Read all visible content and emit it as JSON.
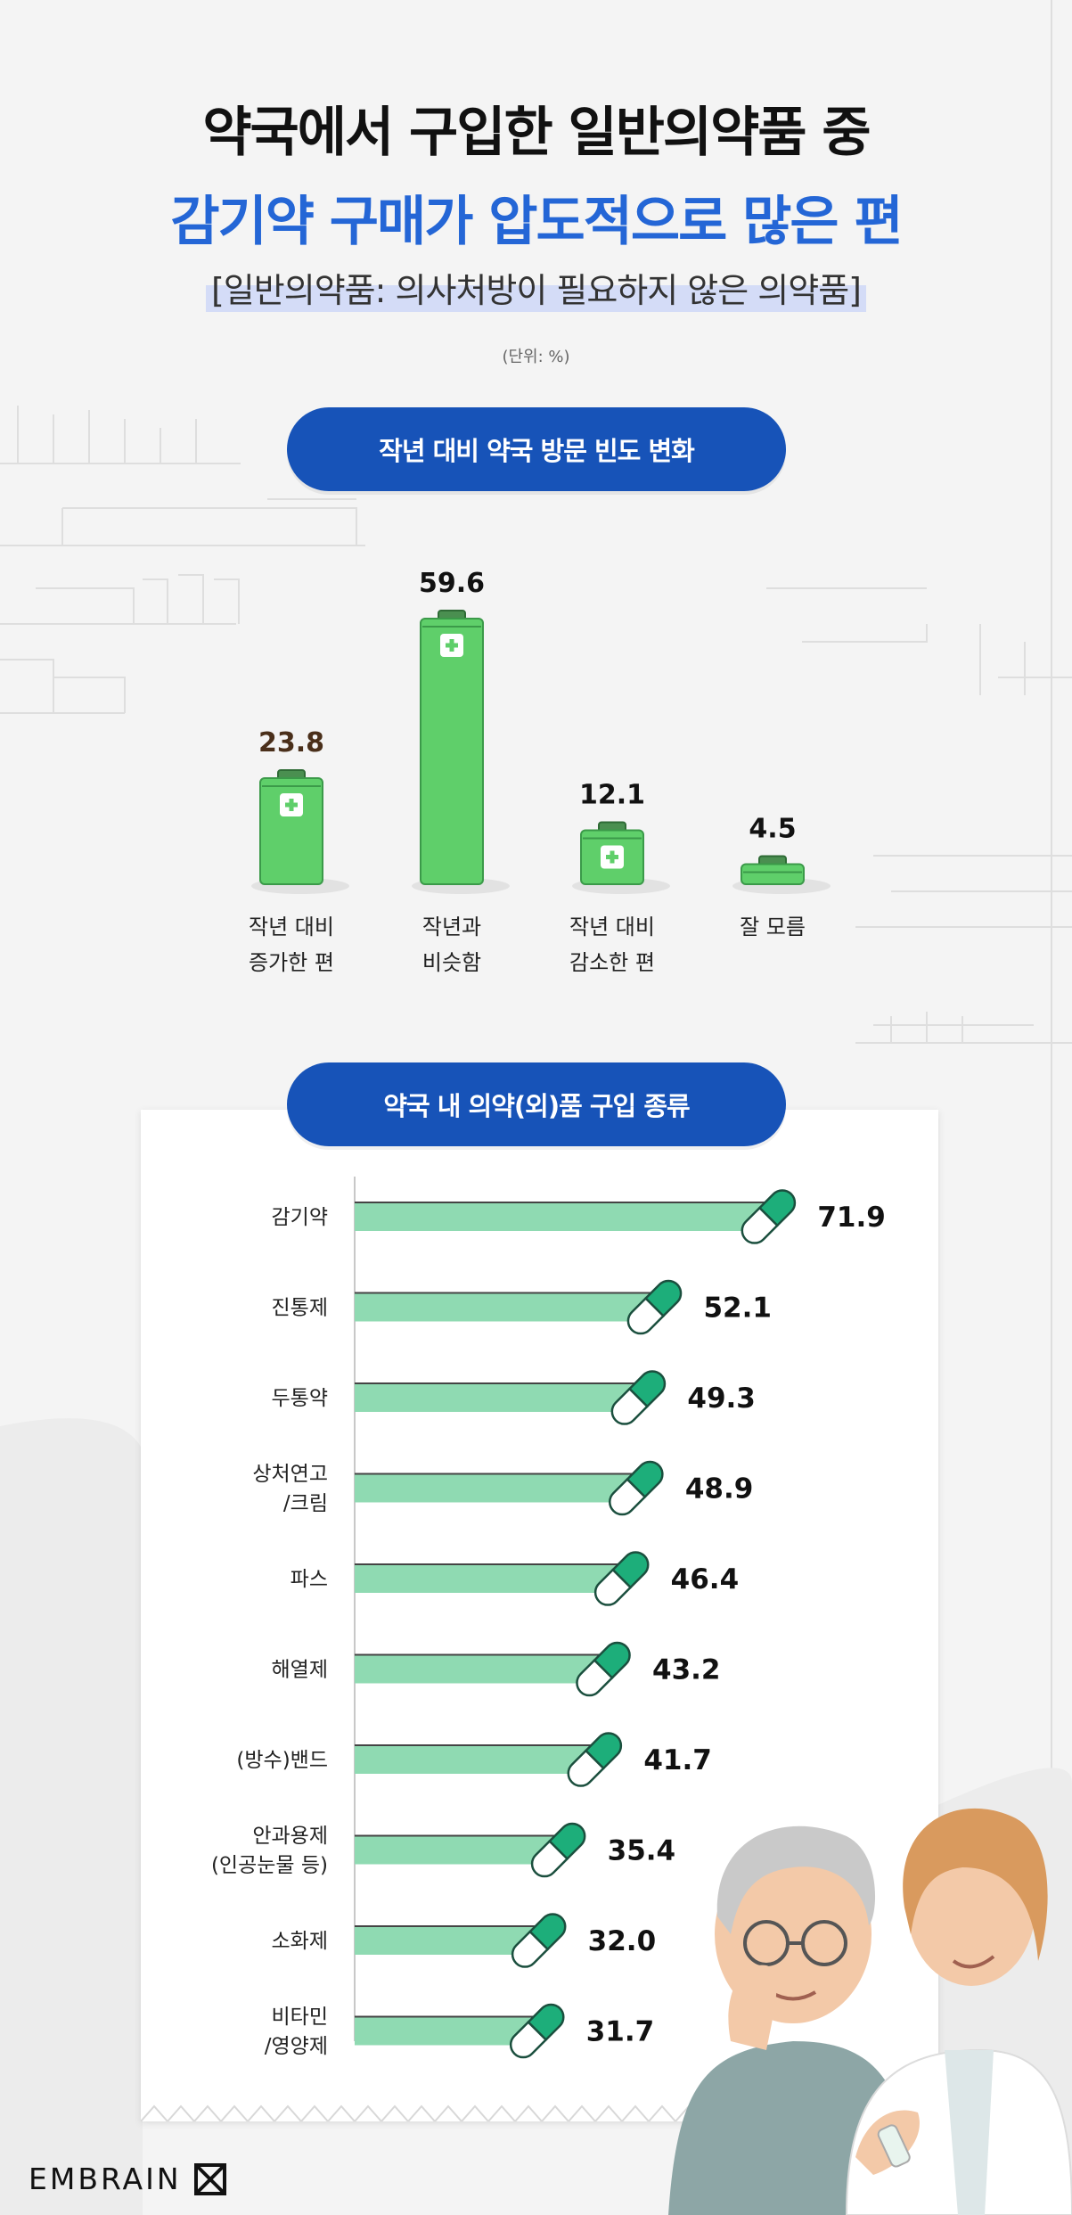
{
  "header": {
    "title_line1": "약국에서 구입한 일반의약품 중",
    "title_line2": "감기약 구매가 압도적으로 많은 편",
    "subtitle": "[일반의약품: 의사처방이 필요하지 않은 의약품]",
    "unit": "(단위: %)"
  },
  "sections": {
    "visit_title": "작년 대비 약국 방문 빈도 변화",
    "purchase_title": "약국 내 의약(외)품 구입 종류"
  },
  "colors": {
    "accent_blue": "#2466d6",
    "pill_blue": "#1753b8",
    "kit_green": "#5fcf6a",
    "bar_green": "#8fdab2",
    "capsule_green": "#1dae7a"
  },
  "brand": {
    "logo": "EMBRAIN"
  },
  "chart_data": [
    {
      "type": "bar",
      "title": "작년 대비 약국 방문 빈도 변화",
      "categories": [
        [
          "작년 대비",
          "증가한 편"
        ],
        [
          "작년과",
          "비슷함"
        ],
        [
          "작년 대비",
          "감소한 편"
        ],
        [
          "잘 모름"
        ]
      ],
      "values": [
        23.8,
        59.6,
        12.1,
        4.5
      ],
      "value_labels": [
        "23.8",
        "59.6",
        "12.1",
        "4.5"
      ],
      "ylim": [
        0,
        60
      ],
      "xlabel": "",
      "ylabel": "",
      "grid": false,
      "legend": "none"
    },
    {
      "type": "bar",
      "orientation": "horizontal",
      "title": "약국 내 의약(외)품 구입 종류",
      "categories": [
        [
          "감기약"
        ],
        [
          "진통제"
        ],
        [
          "두통약"
        ],
        [
          "상처연고",
          "/크림"
        ],
        [
          "파스"
        ],
        [
          "해열제"
        ],
        [
          "(방수)밴드"
        ],
        [
          "안과용제",
          "(인공눈물 등)"
        ],
        [
          "소화제"
        ],
        [
          "비타민",
          "/영양제"
        ]
      ],
      "values": [
        71.9,
        52.1,
        49.3,
        48.9,
        46.4,
        43.2,
        41.7,
        35.4,
        32.0,
        31.7
      ],
      "value_labels": [
        "71.9",
        "52.1",
        "49.3",
        "48.9",
        "46.4",
        "43.2",
        "41.7",
        "35.4",
        "32.0",
        "31.7"
      ],
      "xlim": [
        0,
        72
      ],
      "xlabel": "",
      "ylabel": "",
      "grid": false,
      "legend": "none"
    }
  ]
}
